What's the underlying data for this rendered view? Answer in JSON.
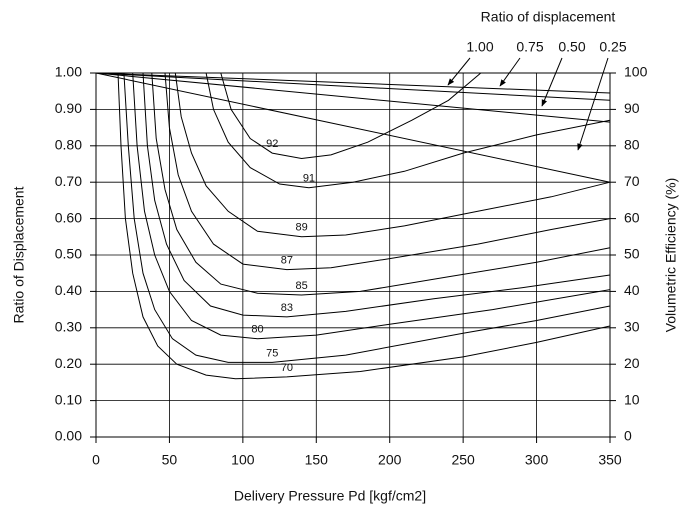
{
  "chart_data": {
    "type": "line",
    "xlabel": "Delivery Pressure Pd [kgf/cm2]",
    "ylabel": "Ratio of Displacement",
    "y2label": "Volumetric Efficiency (%)",
    "xlim": [
      0,
      350
    ],
    "xticks": [
      0,
      50,
      100,
      150,
      200,
      250,
      300,
      350
    ],
    "ylim": [
      0,
      1
    ],
    "yticks": [
      {
        "value": 0,
        "label": "0.00"
      },
      {
        "value": 0.1,
        "label": "0.10"
      },
      {
        "value": 0.2,
        "label": "0.20"
      },
      {
        "value": 0.3,
        "label": "0.30"
      },
      {
        "value": 0.4,
        "label": "0.40"
      },
      {
        "value": 0.5,
        "label": "0.50"
      },
      {
        "value": 0.6,
        "label": "0.60"
      },
      {
        "value": 0.7,
        "label": "0.70"
      },
      {
        "value": 0.8,
        "label": "0.80"
      },
      {
        "value": 0.9,
        "label": "0.90"
      },
      {
        "value": 1,
        "label": "1.00"
      }
    ],
    "y2lim": [
      0,
      100
    ],
    "y2ticks": [
      0,
      10,
      20,
      30,
      40,
      50,
      60,
      70,
      80,
      90,
      100
    ],
    "grid": true,
    "annotation_title": "Ratio of displacement",
    "annotations": [
      "1.00",
      "0.75",
      "0.50",
      "0.25"
    ],
    "lines": [
      {
        "x": [
          0,
          350
        ],
        "values": [
          1.0,
          0.945
        ],
        "color": "#000000"
      },
      {
        "x": [
          0,
          350
        ],
        "values": [
          1.0,
          0.925
        ],
        "color": "#000000"
      },
      {
        "x": [
          0,
          350
        ],
        "values": [
          1.0,
          0.865
        ],
        "color": "#000000"
      },
      {
        "x": [
          0,
          350
        ],
        "values": [
          1.0,
          0.7
        ],
        "color": "#000000"
      }
    ],
    "series": [
      {
        "name": "92",
        "color": "#000000",
        "x": [
          85,
          92,
          105,
          120,
          140,
          160,
          185,
          215,
          240,
          262
        ],
        "values": [
          1.0,
          0.9,
          0.82,
          0.78,
          0.765,
          0.775,
          0.81,
          0.87,
          0.925,
          1.0
        ]
      },
      {
        "name": "91",
        "color": "#000000",
        "x": [
          75,
          80,
          90,
          105,
          125,
          145,
          175,
          210,
          250,
          300,
          350
        ],
        "values": [
          1.0,
          0.9,
          0.81,
          0.74,
          0.695,
          0.685,
          0.7,
          0.73,
          0.78,
          0.83,
          0.87
        ]
      },
      {
        "name": "89",
        "color": "#000000",
        "x": [
          54,
          58,
          65,
          75,
          90,
          110,
          140,
          170,
          210,
          260,
          310,
          350
        ],
        "values": [
          1.0,
          0.88,
          0.78,
          0.69,
          0.62,
          0.565,
          0.55,
          0.555,
          0.58,
          0.62,
          0.66,
          0.7
        ]
      },
      {
        "name": "87",
        "color": "#000000",
        "x": [
          47,
          50,
          56,
          65,
          80,
          100,
          130,
          160,
          200,
          260,
          310,
          350
        ],
        "values": [
          1.0,
          0.85,
          0.72,
          0.62,
          0.53,
          0.475,
          0.46,
          0.465,
          0.49,
          0.53,
          0.57,
          0.6
        ]
      },
      {
        "name": "85",
        "color": "#000000",
        "x": [
          38,
          41,
          47,
          55,
          68,
          85,
          110,
          140,
          180,
          240,
          300,
          350
        ],
        "values": [
          1.0,
          0.82,
          0.68,
          0.57,
          0.48,
          0.42,
          0.395,
          0.39,
          0.4,
          0.44,
          0.48,
          0.52
        ]
      },
      {
        "name": "83",
        "color": "#000000",
        "x": [
          32,
          35,
          40,
          48,
          60,
          78,
          100,
          130,
          170,
          230,
          290,
          350
        ],
        "values": [
          1.0,
          0.8,
          0.65,
          0.53,
          0.43,
          0.36,
          0.335,
          0.33,
          0.345,
          0.38,
          0.41,
          0.445
        ]
      },
      {
        "name": "80",
        "color": "#000000",
        "x": [
          25,
          28,
          33,
          40,
          50,
          65,
          85,
          110,
          150,
          200,
          270,
          350
        ],
        "values": [
          1.0,
          0.8,
          0.62,
          0.5,
          0.4,
          0.32,
          0.28,
          0.27,
          0.28,
          0.31,
          0.35,
          0.405
        ]
      },
      {
        "name": "75",
        "color": "#000000",
        "x": [
          19,
          22,
          26,
          32,
          40,
          52,
          68,
          90,
          120,
          170,
          250,
          300,
          350
        ],
        "values": [
          1.0,
          0.8,
          0.6,
          0.45,
          0.35,
          0.27,
          0.225,
          0.205,
          0.205,
          0.225,
          0.285,
          0.32,
          0.36
        ]
      },
      {
        "name": "70",
        "color": "#000000",
        "x": [
          15,
          17,
          20,
          25,
          32,
          42,
          55,
          75,
          95,
          130,
          180,
          250,
          300,
          350
        ],
        "values": [
          1.0,
          0.8,
          0.6,
          0.45,
          0.33,
          0.25,
          0.2,
          0.17,
          0.16,
          0.165,
          0.18,
          0.22,
          0.26,
          0.305
        ]
      }
    ]
  }
}
